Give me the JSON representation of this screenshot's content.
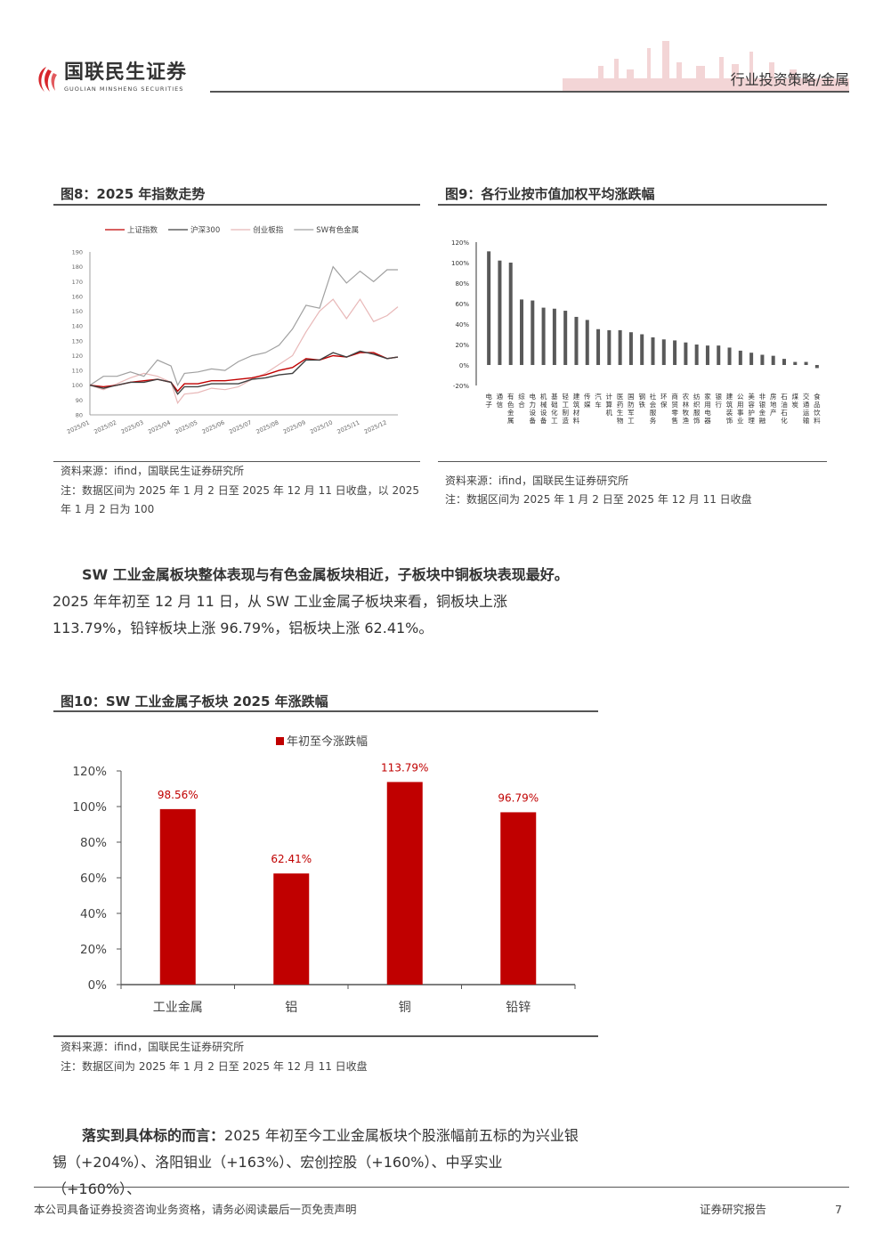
{
  "header": {
    "logo_cn": "国联民生证券",
    "logo_en": "GUOLIAN MINSHENG SECURITIES",
    "section": "行业投资策略/金属"
  },
  "fig8": {
    "title": "图8：2025 年指数走势",
    "source": "资料来源：ifind，国联民生证券研究所",
    "note": "注：数据区间为 2025 年 1 月 2 日至 2025 年 12 月 11 日收盘，以 2025 年 1 月 2 日为 100"
  },
  "fig9": {
    "title": "图9：各行业按市值加权平均涨跌幅",
    "source": "资料来源：ifind，国联民生证券研究所",
    "note": "注：数据区间为 2025 年 1 月 2 日至 2025 年 12 月 11 日收盘"
  },
  "para1": {
    "bold": "SW 工业金属板块整体表现与有色金属板块相近，子板块中铜板块表现最好。",
    "text": "2025 年年初至 12 月 11 日，从 SW 工业金属子板块来看，铜板块上涨 113.79%，铅锌板块上涨 96.79%，铝板块上涨 62.41%。"
  },
  "fig10": {
    "title": "图10：SW 工业金属子板块 2025 年涨跌幅",
    "source": "资料来源：ifind，国联民生证券研究所",
    "note": "注：数据区间为 2025 年 1 月 2 日至 2025 年 12 月 11 日收盘"
  },
  "para2": {
    "bold": "落实到具体标的而言：",
    "text": "2025 年初至今工业金属板块个股涨幅前五标的为兴业银锡（+204%）、洛阳钼业（+163%）、宏创控股（+160%）、中孚实业（+160%）、"
  },
  "footer": {
    "disclaimer": "本公司具备证券投资咨询业务资格，请务必阅读最后一页免责声明",
    "report_type": "证券研究报告",
    "page": "7"
  },
  "chart_data": [
    {
      "type": "line",
      "title": "2025 年指数走势",
      "xlabel": "",
      "ylabel": "",
      "ylim": [
        80,
        190
      ],
      "yticks": [
        80,
        90,
        100,
        110,
        120,
        130,
        140,
        150,
        160,
        170,
        180,
        190
      ],
      "xticks": [
        "2025/01",
        "2025/02",
        "2025/03",
        "2025/04",
        "2025/05",
        "2025/06",
        "2025/07",
        "2025/08",
        "2025/09",
        "2025/10",
        "2025/11",
        "2025/12"
      ],
      "x_unit": "month",
      "xlim": [
        1,
        12.4
      ],
      "legend": "top",
      "series": [
        {
          "name": "上证指数",
          "color": "#c00000",
          "points": [
            [
              1,
              100
            ],
            [
              1.5,
              99
            ],
            [
              2,
              100
            ],
            [
              2.5,
              102
            ],
            [
              3,
              103
            ],
            [
              3.5,
              104
            ],
            [
              4,
              102
            ],
            [
              4.25,
              96
            ],
            [
              4.5,
              101
            ],
            [
              5,
              101
            ],
            [
              5.5,
              103
            ],
            [
              6,
              103
            ],
            [
              6.5,
              104
            ],
            [
              7,
              105
            ],
            [
              7.5,
              107
            ],
            [
              8,
              110
            ],
            [
              8.5,
              112
            ],
            [
              9,
              118
            ],
            [
              9.5,
              117
            ],
            [
              10,
              120
            ],
            [
              10.5,
              119
            ],
            [
              11,
              122
            ],
            [
              11.5,
              122
            ],
            [
              12,
              118
            ],
            [
              12.4,
              119
            ]
          ]
        },
        {
          "name": "沪深300",
          "color": "#404040",
          "points": [
            [
              1,
              100
            ],
            [
              1.5,
              98
            ],
            [
              2,
              100
            ],
            [
              2.5,
              102
            ],
            [
              3,
              102
            ],
            [
              3.5,
              104
            ],
            [
              4,
              102
            ],
            [
              4.25,
              94
            ],
            [
              4.5,
              99
            ],
            [
              5,
              99
            ],
            [
              5.5,
              101
            ],
            [
              6,
              101
            ],
            [
              6.5,
              101
            ],
            [
              7,
              104
            ],
            [
              7.5,
              105
            ],
            [
              8,
              107
            ],
            [
              8.5,
              108
            ],
            [
              9,
              117
            ],
            [
              9.5,
              117
            ],
            [
              10,
              122
            ],
            [
              10.5,
              119
            ],
            [
              11,
              123
            ],
            [
              11.5,
              121
            ],
            [
              12,
              118
            ],
            [
              12.4,
              119
            ]
          ]
        },
        {
          "name": "创业板指",
          "color": "#e8b8b8",
          "points": [
            [
              1,
              100
            ],
            [
              1.5,
              97
            ],
            [
              2,
              101
            ],
            [
              2.5,
              105
            ],
            [
              3,
              108
            ],
            [
              3.5,
              106
            ],
            [
              4,
              102
            ],
            [
              4.25,
              88
            ],
            [
              4.5,
              94
            ],
            [
              5,
              95
            ],
            [
              5.5,
              98
            ],
            [
              6,
              97
            ],
            [
              6.5,
              99
            ],
            [
              7,
              104
            ],
            [
              7.5,
              108
            ],
            [
              8,
              114
            ],
            [
              8.5,
              120
            ],
            [
              9,
              136
            ],
            [
              9.5,
              150
            ],
            [
              10,
              158
            ],
            [
              10.5,
              145
            ],
            [
              11,
              158
            ],
            [
              11.5,
              143
            ],
            [
              12,
              147
            ],
            [
              12.4,
              153
            ]
          ]
        },
        {
          "name": "SW有色金属",
          "color": "#a0a0a0",
          "points": [
            [
              1,
              100
            ],
            [
              1.5,
              106
            ],
            [
              2,
              106
            ],
            [
              2.5,
              109
            ],
            [
              3,
              106
            ],
            [
              3.5,
              117
            ],
            [
              4,
              113
            ],
            [
              4.25,
              100
            ],
            [
              4.5,
              108
            ],
            [
              5,
              109
            ],
            [
              5.5,
              111
            ],
            [
              6,
              110
            ],
            [
              6.5,
              116
            ],
            [
              7,
              120
            ],
            [
              7.5,
              122
            ],
            [
              8,
              127
            ],
            [
              8.5,
              138
            ],
            [
              9,
              154
            ],
            [
              9.5,
              152
            ],
            [
              10,
              180
            ],
            [
              10.5,
              169
            ],
            [
              11,
              177
            ],
            [
              11.5,
              170
            ],
            [
              12,
              178
            ],
            [
              12.4,
              178
            ]
          ]
        }
      ]
    },
    {
      "type": "bar",
      "title": "各行业按市值加权平均涨跌幅",
      "ylim": [
        -20,
        120
      ],
      "yticks": [
        "-20%",
        "0%",
        "20%",
        "40%",
        "60%",
        "80%",
        "100%",
        "120%"
      ],
      "bar_color": "#595959",
      "categories": [
        "电子",
        "通信",
        "有色金属",
        "综合",
        "电力设备",
        "机械设备",
        "基础化工",
        "轻工制造",
        "建筑材料",
        "传媒",
        "汽车",
        "计算机",
        "医药生物",
        "国防军工",
        "钢铁",
        "社会服务",
        "环保",
        "商贸零售",
        "农林牧渔",
        "纺织服饰",
        "家用电器",
        "银行",
        "建筑装饰",
        "公用事业",
        "美容护理",
        "非银金融",
        "房地产",
        "石油石化",
        "煤炭",
        "交通运输",
        "食品饮料"
      ],
      "values": [
        111,
        102,
        100,
        64,
        63,
        56,
        55,
        53,
        47,
        44,
        35,
        34,
        34,
        32,
        30,
        27,
        25,
        24,
        22,
        20,
        19,
        19,
        17,
        14,
        12,
        10,
        9,
        6,
        3,
        3,
        -3
      ]
    },
    {
      "type": "bar",
      "title": "SW 工业金属子板块 2025 年涨跌幅",
      "legend": "top",
      "series_name": "年初至今涨跌幅",
      "bar_color": "#c00000",
      "label_color": "#c00000",
      "ylim": [
        0,
        120
      ],
      "yticks": [
        "0%",
        "20%",
        "40%",
        "60%",
        "80%",
        "100%",
        "120%"
      ],
      "categories": [
        "工业金属",
        "铝",
        "铜",
        "铅锌"
      ],
      "values": [
        98.56,
        62.41,
        113.79,
        96.79
      ],
      "labels": [
        "98.56%",
        "62.41%",
        "113.79%",
        "96.79%"
      ]
    }
  ]
}
